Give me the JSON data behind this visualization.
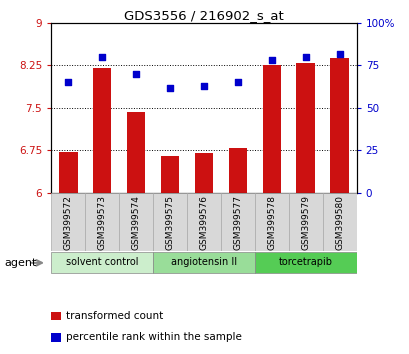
{
  "title": "GDS3556 / 216902_s_at",
  "categories": [
    "GSM399572",
    "GSM399573",
    "GSM399574",
    "GSM399575",
    "GSM399576",
    "GSM399577",
    "GSM399578",
    "GSM399579",
    "GSM399580"
  ],
  "bar_values": [
    6.73,
    8.2,
    7.43,
    6.65,
    6.7,
    6.79,
    8.25,
    8.3,
    8.38
  ],
  "dot_values": [
    65,
    80,
    70,
    62,
    63,
    65,
    78,
    80,
    82
  ],
  "ylim_left": [
    6,
    9
  ],
  "ylim_right": [
    0,
    100
  ],
  "yticks_left": [
    6,
    6.75,
    7.5,
    8.25,
    9
  ],
  "yticks_right": [
    0,
    25,
    50,
    75,
    100
  ],
  "ytick_labels_left": [
    "6",
    "6.75",
    "7.5",
    "8.25",
    "9"
  ],
  "ytick_labels_right": [
    "0",
    "25",
    "50",
    "75",
    "100%"
  ],
  "bar_color": "#cc1111",
  "dot_color": "#0000cc",
  "bar_bottom": 6,
  "groups": [
    {
      "label": "solvent control",
      "indices": [
        0,
        1,
        2
      ],
      "color": "#cceecc"
    },
    {
      "label": "angiotensin II",
      "indices": [
        3,
        4,
        5
      ],
      "color": "#99dd99"
    },
    {
      "label": "torcetrapib",
      "indices": [
        6,
        7,
        8
      ],
      "color": "#55cc55"
    }
  ],
  "xtick_bg": "#d8d8d8",
  "agent_label": "agent",
  "legend_bar_label": "transformed count",
  "legend_dot_label": "percentile rank within the sample",
  "grid_yticks": [
    6.75,
    7.5,
    8.25
  ]
}
